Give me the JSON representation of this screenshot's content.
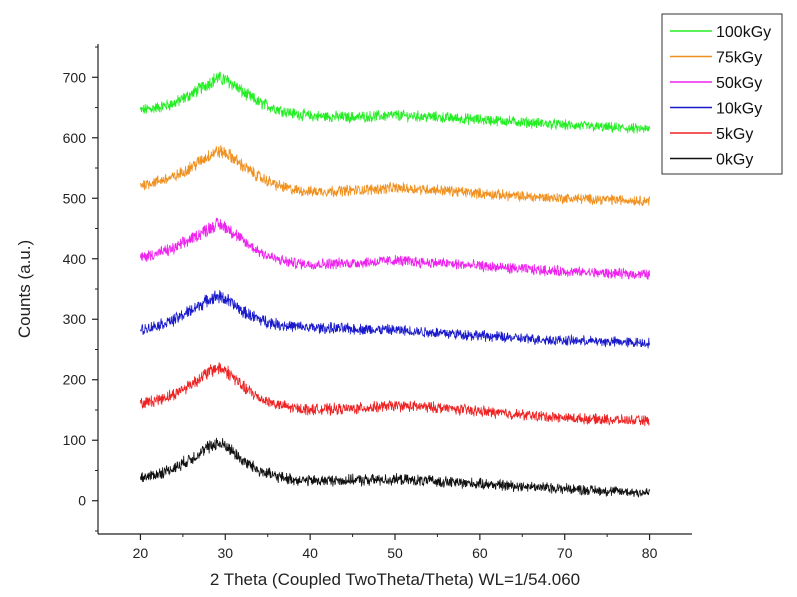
{
  "chart_data": {
    "type": "line",
    "xlabel": "2 Theta (Coupled TwoTheta/Theta) WL=1/54.060",
    "ylabel": "Counts (a.u.)",
    "xlim": [
      15,
      85
    ],
    "ylim": [
      -55,
      755
    ],
    "xticks": [
      20,
      30,
      40,
      50,
      60,
      70,
      80
    ],
    "yticks": [
      0,
      100,
      200,
      300,
      400,
      500,
      600,
      700
    ],
    "x_range": [
      20,
      80
    ],
    "grid": false,
    "legend_position": "top-right",
    "series": [
      {
        "name": "100kGy",
        "color": "#22ee22",
        "points": [
          [
            20,
            645
          ],
          [
            22,
            650
          ],
          [
            24,
            657
          ],
          [
            26,
            672
          ],
          [
            28,
            690
          ],
          [
            29,
            699
          ],
          [
            30,
            696
          ],
          [
            31,
            688
          ],
          [
            32,
            676
          ],
          [
            34,
            658
          ],
          [
            36,
            648
          ],
          [
            38,
            640
          ],
          [
            40,
            636
          ],
          [
            45,
            634
          ],
          [
            50,
            637
          ],
          [
            55,
            634
          ],
          [
            60,
            630
          ],
          [
            65,
            626
          ],
          [
            70,
            621
          ],
          [
            75,
            617
          ],
          [
            80,
            614
          ]
        ]
      },
      {
        "name": "75kGy",
        "color": "#f0901e",
        "points": [
          [
            20,
            522
          ],
          [
            22,
            528
          ],
          [
            24,
            535
          ],
          [
            26,
            552
          ],
          [
            28,
            570
          ],
          [
            29,
            578
          ],
          [
            30,
            575
          ],
          [
            31,
            566
          ],
          [
            32,
            554
          ],
          [
            34,
            535
          ],
          [
            36,
            522
          ],
          [
            38,
            514
          ],
          [
            40,
            511
          ],
          [
            45,
            513
          ],
          [
            50,
            517
          ],
          [
            55,
            514
          ],
          [
            60,
            508
          ],
          [
            65,
            503
          ],
          [
            70,
            500
          ],
          [
            75,
            498
          ],
          [
            80,
            496
          ]
        ]
      },
      {
        "name": "50kGy",
        "color": "#ee22ee",
        "points": [
          [
            20,
            402
          ],
          [
            22,
            409
          ],
          [
            24,
            417
          ],
          [
            26,
            433
          ],
          [
            28,
            450
          ],
          [
            29,
            457
          ],
          [
            30,
            453
          ],
          [
            31,
            443
          ],
          [
            32,
            430
          ],
          [
            34,
            412
          ],
          [
            36,
            399
          ],
          [
            38,
            393
          ],
          [
            40,
            391
          ],
          [
            45,
            393
          ],
          [
            50,
            397
          ],
          [
            55,
            393
          ],
          [
            60,
            388
          ],
          [
            65,
            383
          ],
          [
            70,
            379
          ],
          [
            75,
            376
          ],
          [
            80,
            374
          ]
        ]
      },
      {
        "name": "10kGy",
        "color": "#1a1acc",
        "points": [
          [
            20,
            282
          ],
          [
            22,
            290
          ],
          [
            24,
            299
          ],
          [
            26,
            315
          ],
          [
            28,
            332
          ],
          [
            29,
            338
          ],
          [
            30,
            334
          ],
          [
            31,
            324
          ],
          [
            32,
            313
          ],
          [
            34,
            300
          ],
          [
            36,
            292
          ],
          [
            38,
            288
          ],
          [
            40,
            286
          ],
          [
            45,
            284
          ],
          [
            50,
            282
          ],
          [
            55,
            278
          ],
          [
            60,
            273
          ],
          [
            65,
            268
          ],
          [
            70,
            265
          ],
          [
            75,
            263
          ],
          [
            80,
            261
          ]
        ]
      },
      {
        "name": "5kGy",
        "color": "#ee2222",
        "points": [
          [
            20,
            160
          ],
          [
            22,
            167
          ],
          [
            24,
            176
          ],
          [
            26,
            193
          ],
          [
            28,
            212
          ],
          [
            29,
            220
          ],
          [
            30,
            216
          ],
          [
            31,
            204
          ],
          [
            32,
            189
          ],
          [
            34,
            170
          ],
          [
            36,
            159
          ],
          [
            38,
            153
          ],
          [
            40,
            151
          ],
          [
            45,
            152
          ],
          [
            50,
            157
          ],
          [
            55,
            154
          ],
          [
            60,
            148
          ],
          [
            65,
            142
          ],
          [
            70,
            137
          ],
          [
            75,
            134
          ],
          [
            80,
            132
          ]
        ]
      },
      {
        "name": "0kGy",
        "color": "#111111",
        "points": [
          [
            20,
            37
          ],
          [
            22,
            44
          ],
          [
            24,
            54
          ],
          [
            26,
            70
          ],
          [
            28,
            88
          ],
          [
            29,
            95
          ],
          [
            30,
            91
          ],
          [
            31,
            80
          ],
          [
            32,
            67
          ],
          [
            34,
            50
          ],
          [
            36,
            40
          ],
          [
            38,
            35
          ],
          [
            40,
            33
          ],
          [
            45,
            34
          ],
          [
            50,
            35
          ],
          [
            55,
            32
          ],
          [
            60,
            28
          ],
          [
            65,
            24
          ],
          [
            70,
            20
          ],
          [
            75,
            16
          ],
          [
            80,
            13
          ]
        ]
      }
    ]
  }
}
